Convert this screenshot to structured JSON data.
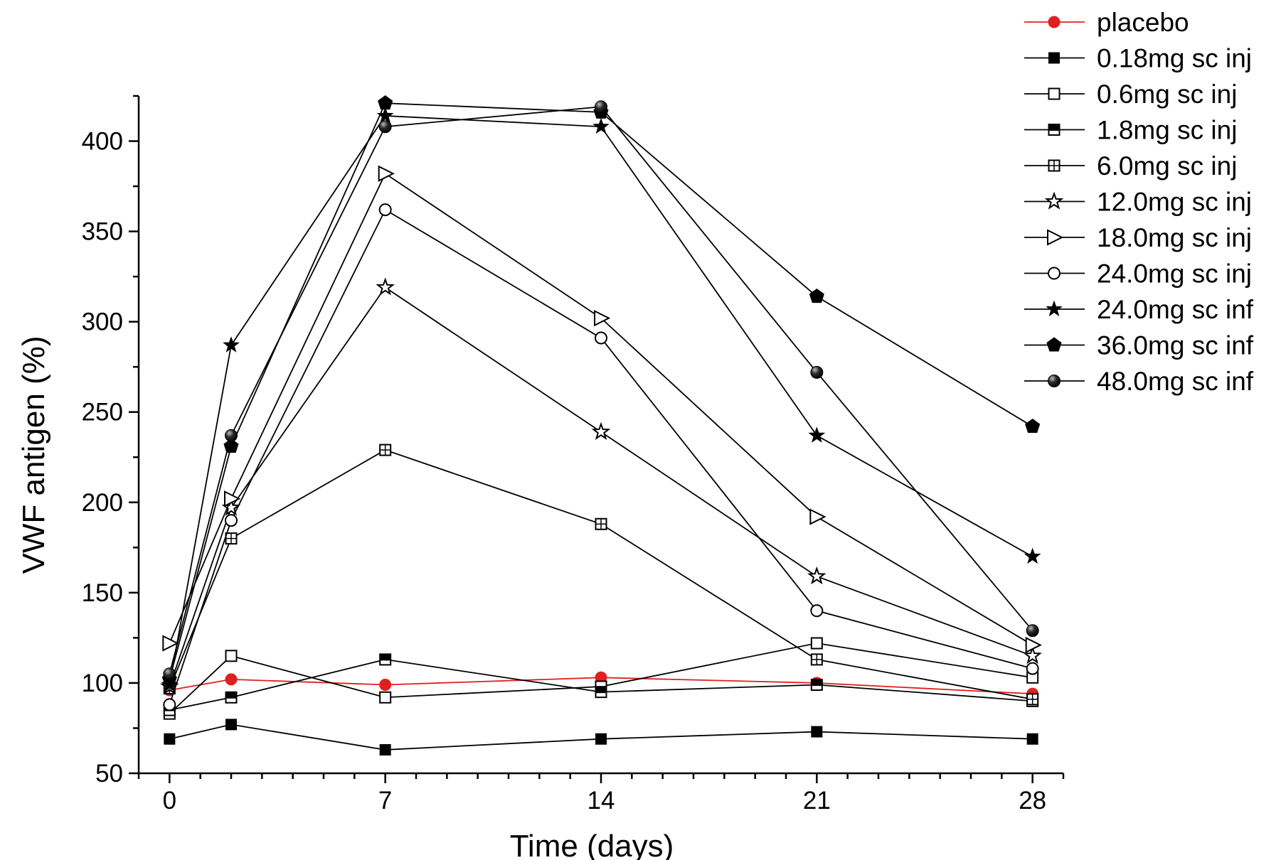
{
  "chart_data": {
    "type": "line",
    "title": "",
    "xlabel": "Time (days)",
    "ylabel": "VWF antigen (%)",
    "xlim": [
      -1.0,
      29.0
    ],
    "ylim": [
      50,
      425
    ],
    "xticks": [
      0,
      7,
      14,
      21,
      28
    ],
    "xtick_labels": [
      "0",
      "7",
      "14",
      "21",
      "28"
    ],
    "yticks": [
      50,
      100,
      150,
      200,
      250,
      300,
      350,
      400
    ],
    "ytick_labels": [
      "50",
      "100",
      "150",
      "200",
      "250",
      "300",
      "350",
      "400"
    ],
    "grid": false,
    "legend_position": "top-right outside",
    "x": [
      0,
      2,
      7,
      14,
      21,
      28
    ],
    "series": [
      {
        "name": "placebo",
        "marker": "circle-red",
        "color": "#e02020",
        "values": [
          96,
          102,
          99,
          103,
          100,
          94
        ]
      },
      {
        "name": "0.18mg sc inj",
        "marker": "square-filled",
        "color": "#000000",
        "values": [
          69,
          77,
          63,
          69,
          73,
          69
        ]
      },
      {
        "name": "0.6mg sc inj",
        "marker": "square-open",
        "color": "#000000",
        "values": [
          83,
          115,
          92,
          98,
          122,
          103
        ]
      },
      {
        "name": "1.8mg sc inj",
        "marker": "square-half",
        "color": "#000000",
        "values": [
          85,
          92,
          113,
          95,
          99,
          90
        ]
      },
      {
        "name": "6.0mg sc inj",
        "marker": "square-plus",
        "color": "#000000",
        "values": [
          97,
          180,
          229,
          188,
          113,
          91
        ]
      },
      {
        "name": "12.0mg sc inj",
        "marker": "star-open",
        "color": "#000000",
        "values": [
          98,
          197,
          319,
          239,
          159,
          115
        ]
      },
      {
        "name": "18.0mg sc inj",
        "marker": "triangle-right-open",
        "color": "#000000",
        "values": [
          122,
          202,
          382,
          302,
          192,
          121
        ]
      },
      {
        "name": "24.0mg sc inj",
        "marker": "circle-open",
        "color": "#000000",
        "values": [
          88,
          190,
          362,
          291,
          140,
          108
        ]
      },
      {
        "name": "24.0mg sc inf",
        "marker": "star-filled",
        "color": "#000000",
        "values": [
          99,
          287,
          414,
          408,
          237,
          170
        ]
      },
      {
        "name": "36.0mg sc inf",
        "marker": "pentagon-filled",
        "color": "#000000",
        "values": [
          102,
          231,
          421,
          416,
          314,
          242
        ]
      },
      {
        "name": "48.0mg sc inf",
        "marker": "sphere-filled",
        "color": "#000000",
        "values": [
          105,
          237,
          408,
          419,
          272,
          129
        ]
      }
    ]
  }
}
